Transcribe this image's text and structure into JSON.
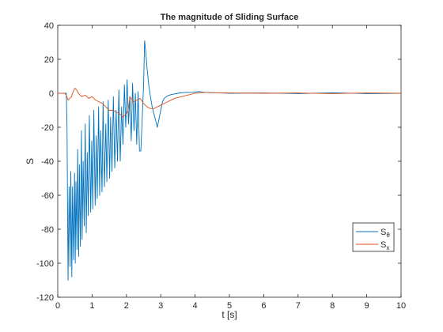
{
  "chart_data": {
    "type": "line",
    "title": "The magnitude of Sliding Surface",
    "xlabel": "t [s]",
    "ylabel": "S",
    "xlim": [
      0,
      10
    ],
    "ylim": [
      -120,
      40
    ],
    "xticks": [
      0,
      1,
      2,
      3,
      4,
      5,
      6,
      7,
      8,
      9,
      10
    ],
    "yticks": [
      40,
      20,
      0,
      -20,
      -40,
      -60,
      -80,
      -100,
      -120
    ],
    "grid": false,
    "legend_position": "bottom-right",
    "series": [
      {
        "name": "S_θ",
        "legend_main": "S",
        "legend_sub": "θ",
        "color": "#0072BD",
        "x": [
          0,
          0.25,
          0.27,
          0.3,
          0.33,
          0.36,
          0.38,
          0.41,
          0.43,
          0.46,
          0.49,
          0.51,
          0.53,
          0.56,
          0.58,
          0.61,
          0.63,
          0.66,
          0.69,
          0.71,
          0.74,
          0.77,
          0.8,
          0.83,
          0.86,
          0.89,
          0.92,
          0.96,
          0.99,
          1.02,
          1.05,
          1.09,
          1.12,
          1.15,
          1.19,
          1.22,
          1.25,
          1.29,
          1.32,
          1.36,
          1.4,
          1.43,
          1.47,
          1.51,
          1.54,
          1.58,
          1.62,
          1.66,
          1.7,
          1.74,
          1.78,
          1.82,
          1.86,
          1.9,
          1.94,
          1.98,
          2.02,
          2.06,
          2.1,
          2.14,
          2.18,
          2.22,
          2.26,
          2.3,
          2.34,
          2.38,
          2.42,
          2.46,
          2.5,
          2.53,
          2.56,
          2.6,
          2.65,
          2.7,
          2.75,
          2.8,
          2.85,
          2.9,
          2.95,
          3.0,
          3.05,
          3.1,
          3.2,
          3.3,
          3.5,
          3.7,
          3.9,
          4.1,
          4.3,
          4.6,
          5.0,
          6.0,
          7.0,
          8.0,
          9.0,
          10.0
        ],
        "values": [
          0,
          0,
          -20,
          -110,
          -55,
          -102,
          -46,
          -108,
          -55,
          -98,
          -47,
          -100,
          -52,
          -92,
          -33,
          -96,
          -42,
          -90,
          -22,
          -86,
          -40,
          -78,
          -18,
          -82,
          -35,
          -72,
          -13,
          -70,
          -28,
          -68,
          -10,
          -66,
          -25,
          -62,
          -8,
          -60,
          -22,
          -58,
          -5,
          -55,
          -18,
          -52,
          -4,
          -50,
          -14,
          -46,
          -2,
          -44,
          -10,
          -40,
          2,
          -40,
          -8,
          -30,
          5,
          -20,
          8,
          -18,
          -2,
          -28,
          6,
          -22,
          0,
          -30,
          1,
          -34,
          -34,
          -15,
          5,
          31,
          25,
          15,
          5,
          -2,
          -8,
          -12,
          -16,
          -20,
          -15,
          -10,
          -5,
          -3,
          -1.5,
          -0.8,
          0,
          0.5,
          0.5,
          1,
          0.5,
          0.3,
          0,
          0.2,
          -0.2,
          0.3,
          -0.2,
          0
        ]
      },
      {
        "name": "S_x",
        "legend_main": "S",
        "legend_sub": "x",
        "color": "#D95319",
        "x": [
          0,
          0.2,
          0.25,
          0.3,
          0.35,
          0.4,
          0.45,
          0.5,
          0.55,
          0.6,
          0.65,
          0.7,
          0.8,
          0.9,
          1.0,
          1.1,
          1.2,
          1.3,
          1.4,
          1.5,
          1.6,
          1.7,
          1.8,
          1.9,
          2.0,
          2.05,
          2.1,
          2.2,
          2.3,
          2.4,
          2.5,
          2.6,
          2.7,
          2.8,
          2.9,
          3.0,
          3.2,
          3.4,
          3.6,
          3.8,
          4.0,
          4.2,
          4.5,
          5.0,
          6.0,
          7.0,
          8.0,
          9.0,
          10.0
        ],
        "values": [
          0,
          0,
          -1,
          -4,
          -3,
          -2,
          1,
          3,
          2,
          0,
          -1,
          -2,
          -1,
          -3,
          -2,
          -4,
          -5,
          -6,
          -8,
          -10,
          -10,
          -11,
          -12,
          -14,
          -12,
          -10,
          -2,
          -5,
          -4,
          -3,
          -6,
          -8,
          -9,
          -9,
          -8,
          -7,
          -5,
          -3,
          -2,
          -1,
          0,
          0.5,
          0.3,
          0.2,
          0,
          0.2,
          -0.2,
          0.2,
          0
        ]
      }
    ]
  }
}
